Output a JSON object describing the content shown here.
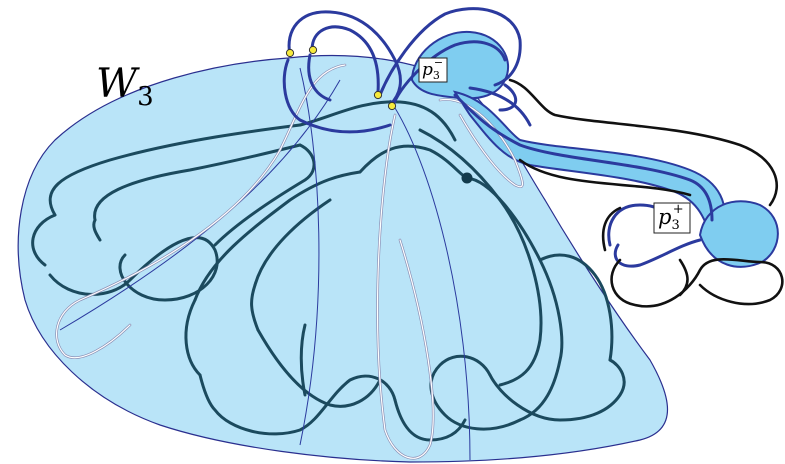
{
  "labels": {
    "surface": {
      "base": "W",
      "sub": "3"
    },
    "point_minus": {
      "base": "p",
      "sub": "3",
      "sup": "−"
    },
    "point_plus": {
      "base": "p",
      "sub": "3",
      "sup": "+"
    }
  },
  "colors": {
    "surface_fill": "#b9e4f8",
    "surface_edge": "#2a2f8f",
    "tube_fill": "#7fcdf0",
    "strand_dark": "#1b4a5e",
    "strand_blue": "#2b3a9e",
    "strand_black": "#111111",
    "strand_white": "#ffffff",
    "marker_yellow": "#f6ea3c",
    "dot_dark": "#123a4c"
  }
}
